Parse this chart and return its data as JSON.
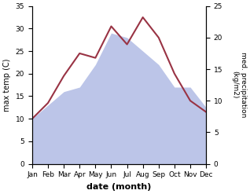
{
  "months": [
    "Jan",
    "Feb",
    "Mar",
    "Apr",
    "May",
    "Jun",
    "Jul",
    "Aug",
    "Sep",
    "Oct",
    "Nov",
    "Dec"
  ],
  "temp": [
    10,
    13.5,
    19.5,
    24.5,
    23.5,
    30.5,
    26.5,
    32.5,
    28.0,
    20.0,
    14.0,
    11.5
  ],
  "precip_left_scale": [
    10,
    13,
    16,
    17,
    22,
    29,
    28,
    25,
    22,
    17,
    17,
    12.5
  ],
  "temp_color": "#993344",
  "precip_fill_color": "#bcc5e8",
  "xlabel": "date (month)",
  "ylabel_left": "max temp (C)",
  "ylabel_right": "med. precipitation\n(kg/m2)",
  "ylim_left": [
    0,
    35
  ],
  "ylim_right": [
    0,
    25
  ],
  "yticks_left": [
    0,
    5,
    10,
    15,
    20,
    25,
    30,
    35
  ],
  "yticks_right": [
    0,
    5,
    10,
    15,
    20,
    25
  ],
  "background_color": "#ffffff"
}
